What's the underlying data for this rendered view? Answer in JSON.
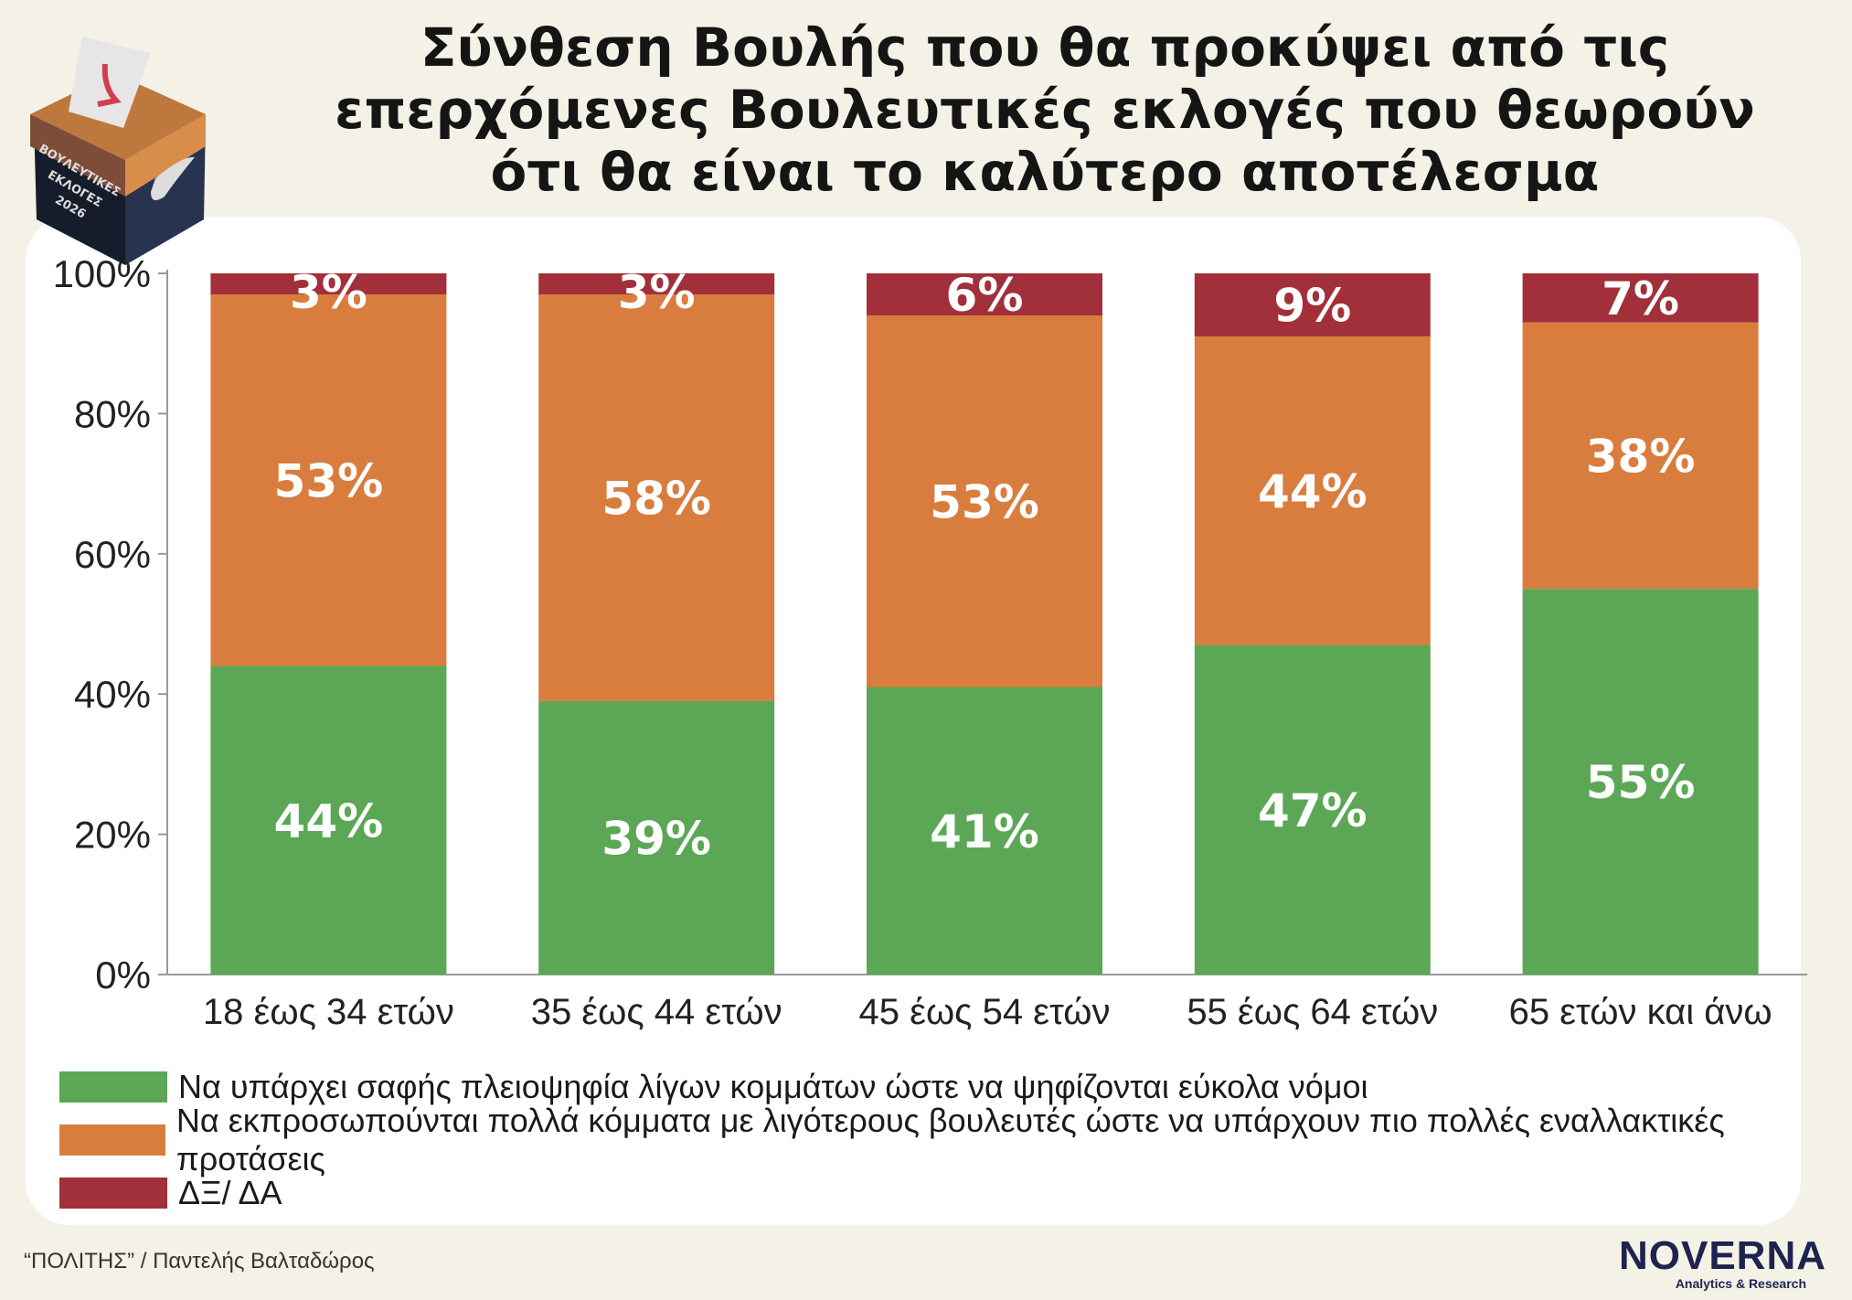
{
  "title": [
    "Σύνθεση Βουλής που θα προκύψει από τις",
    "επερχόμενες Βουλευτικές εκλογές που θεωρούν",
    "ότι θα είναι το καλύτερο αποτέλεσμα"
  ],
  "badge": {
    "text": [
      "ΒΟΥΛΕΥΤΙΚΕΣ",
      "ΕΚΛΟΓΕΣ",
      "2026"
    ]
  },
  "chart_data": {
    "type": "bar",
    "stacked": true,
    "categories": [
      "18 έως 34 ετών",
      "35 έως 44 ετών",
      "45 έως 54 ετών",
      "55 έως 64 ετών",
      "65 ετών και άνω"
    ],
    "series": [
      {
        "name": "Να υπάρχει σαφής πλειοψηφία λίγων κομμάτων ώστε να ψηφίζονται εύκολα νόμοι",
        "color": "#5ba755",
        "values": [
          44,
          39,
          41,
          47,
          55
        ]
      },
      {
        "name": "Να εκπροσωπούνται πολλά κόμματα με λιγότερους βουλευτές ώστε να υπάρχουν πιο πολλές εναλλακτικές προτάσεις",
        "color": "#d97d3f",
        "values": [
          53,
          58,
          53,
          44,
          38
        ]
      },
      {
        "name": "ΔΞ/ ΔΑ",
        "color": "#a1303a",
        "values": [
          3,
          3,
          6,
          9,
          7
        ]
      }
    ],
    "yticks": [
      "0%",
      "20%",
      "40%",
      "60%",
      "80%",
      "100%"
    ],
    "ylim": [
      0,
      100
    ],
    "legend_position": "bottom-left"
  },
  "footer": {
    "source": "“ΠΟΛΙΤΗΣ” / Παντελής Βαλταδώρος"
  },
  "logo": {
    "name": "NOVERNA",
    "tagline": "Analytics & Research"
  }
}
